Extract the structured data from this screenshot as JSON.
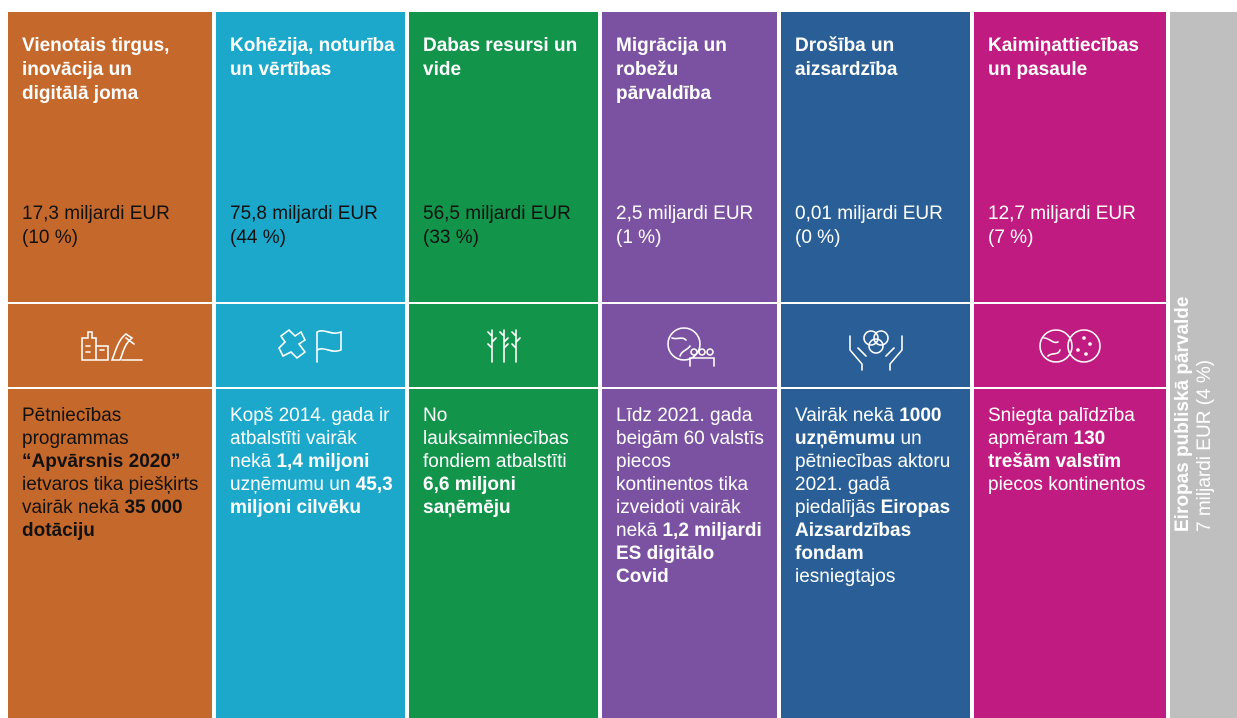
{
  "columns": [
    {
      "header": "Vienotais tirgus, inovācija un digitālā joma",
      "amount": "17,3 miljardi EUR (10 %)",
      "body": [
        {
          "text": "Pētniecības programmas ",
          "bold": false
        },
        {
          "text": "“Apvārsnis 2020”",
          "bold": true
        },
        {
          "text": " ietvaros tika piešķirts vairāk nekā ",
          "bold": false
        },
        {
          "text": "35 000 dotāciju",
          "bold": true
        }
      ]
    },
    {
      "header": "Kohēzija, noturība un vērtības",
      "amount": "75,8 miljardi EUR (44 %)",
      "body": [
        {
          "text": "Kopš 2014. gada ir atbalstīti vairāk nekā ",
          "bold": false
        },
        {
          "text": "1,4 miljoni",
          "bold": true
        },
        {
          "text": " uzņēmumu un ",
          "bold": false
        },
        {
          "text": "45,3 miljoni cilvēku",
          "bold": true
        }
      ]
    },
    {
      "header": "Dabas resursi un vide",
      "amount": "56,5 miljardi EUR (33 %)",
      "body": [
        {
          "text": "No lauksaimniecības fondiem atbalstīti ",
          "bold": false
        },
        {
          "text": "6,6 miljoni saņēmēju",
          "bold": true
        }
      ]
    },
    {
      "header": "Migrācija un robežu pārvaldība",
      "amount": "2,5 miljardi EUR (1 %)",
      "body": [
        {
          "text": "Līdz 2021. gada beigām 60 valstīs piecos kontinentos tika izveidoti vairāk nekā ",
          "bold": false
        },
        {
          "text": "1,2 miljardi ES digitālo Covid",
          "bold": true
        }
      ]
    },
    {
      "header": "Drošība un aizsardzība",
      "amount": "0,01 miljardi EUR (0 %)",
      "body": [
        {
          "text": "Vairāk nekā ",
          "bold": false
        },
        {
          "text": "1000 uzņēmumu",
          "bold": true
        },
        {
          "text": " un pētniecības aktoru 2021. gadā piedalījās ",
          "bold": false
        },
        {
          "text": "Eiropas Aizsardzības fondam",
          "bold": true
        },
        {
          "text": " iesniegtajos",
          "bold": false
        }
      ]
    },
    {
      "header": "Kaimiņattiecības un pasaule",
      "amount": "12,7 miljardi EUR (7 %)",
      "body": [
        {
          "text": "Sniegta palīdzība apmēram ",
          "bold": false
        },
        {
          "text": "130 trešām valstīm",
          "bold": true
        },
        {
          "text": " piecos kontinentos",
          "bold": false
        }
      ]
    }
  ],
  "side": {
    "title": "Eiropas publiskā pārvalde",
    "amount": "7 miljardi EUR (4 %)"
  }
}
